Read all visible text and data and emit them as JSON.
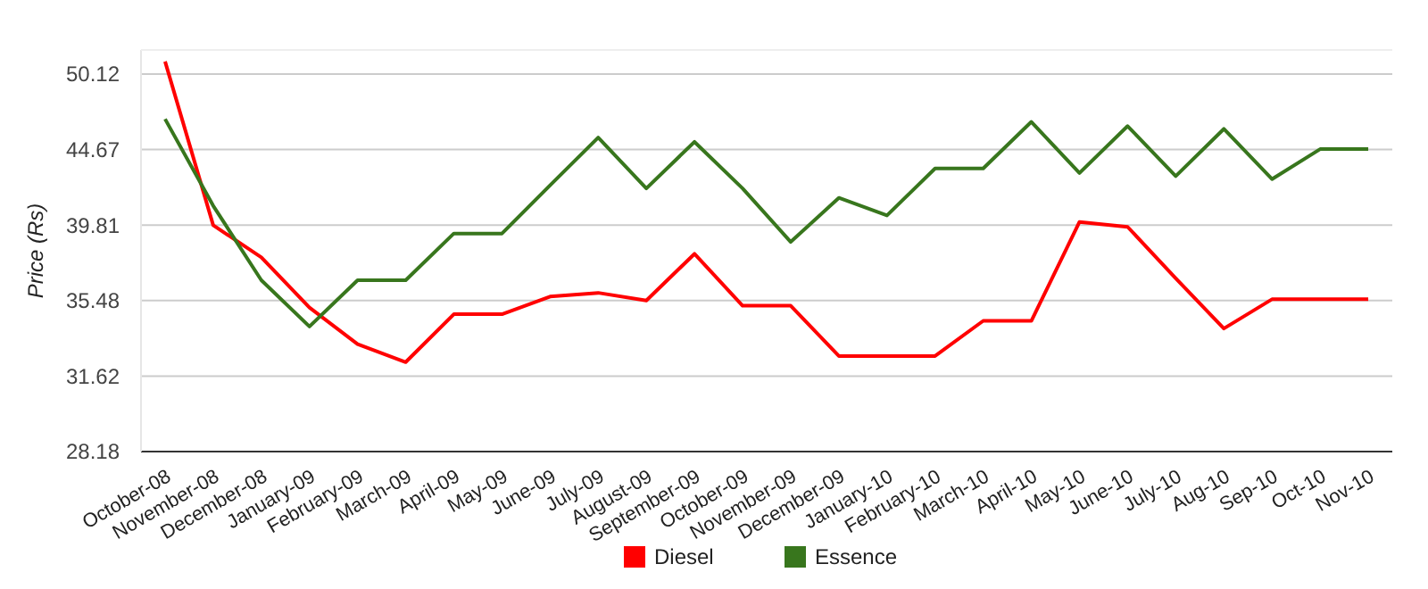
{
  "chart_data": {
    "type": "line",
    "ylabel": "Price (Rs)",
    "categories": [
      "October-08",
      "November-08",
      "December-08",
      "January-09",
      "February-09",
      "March-09",
      "April-09",
      "May-09",
      "June-09",
      "July-09",
      "August-09",
      "September-09",
      "October-09",
      "November-09",
      "December-09",
      "January-10",
      "February-10",
      "March-10",
      "April-10",
      "May-10",
      "June-10",
      "July-10",
      "Aug-10",
      "Sep-10",
      "Oct-10",
      "Nov-10"
    ],
    "series": [
      {
        "name": "Diesel",
        "color": "#ff0000",
        "values": [
          51.1,
          39.8,
          37.9,
          35.1,
          33.2,
          32.3,
          34.75,
          34.75,
          35.7,
          35.9,
          35.48,
          38.1,
          35.2,
          35.2,
          32.6,
          32.6,
          32.6,
          34.4,
          34.4,
          40.0,
          39.7,
          36.7,
          34.0,
          35.55,
          35.55,
          35.55
        ]
      },
      {
        "name": "Essence",
        "color": "#38761d",
        "values": [
          46.8,
          41.0,
          36.6,
          34.1,
          36.6,
          36.6,
          39.3,
          39.3,
          42.3,
          45.5,
          42.1,
          45.2,
          42.1,
          38.8,
          41.5,
          40.4,
          43.4,
          43.4,
          46.6,
          43.1,
          46.3,
          42.9,
          46.1,
          42.7,
          44.7,
          44.7
        ]
      }
    ],
    "ylim": [
      28.18,
      52
    ],
    "yticks": [
      28.18,
      31.62,
      35.48,
      39.81,
      44.67,
      50.12
    ],
    "log": true,
    "grid": "y",
    "legend": "bottom",
    "marker": "none",
    "line_style": "solid"
  }
}
